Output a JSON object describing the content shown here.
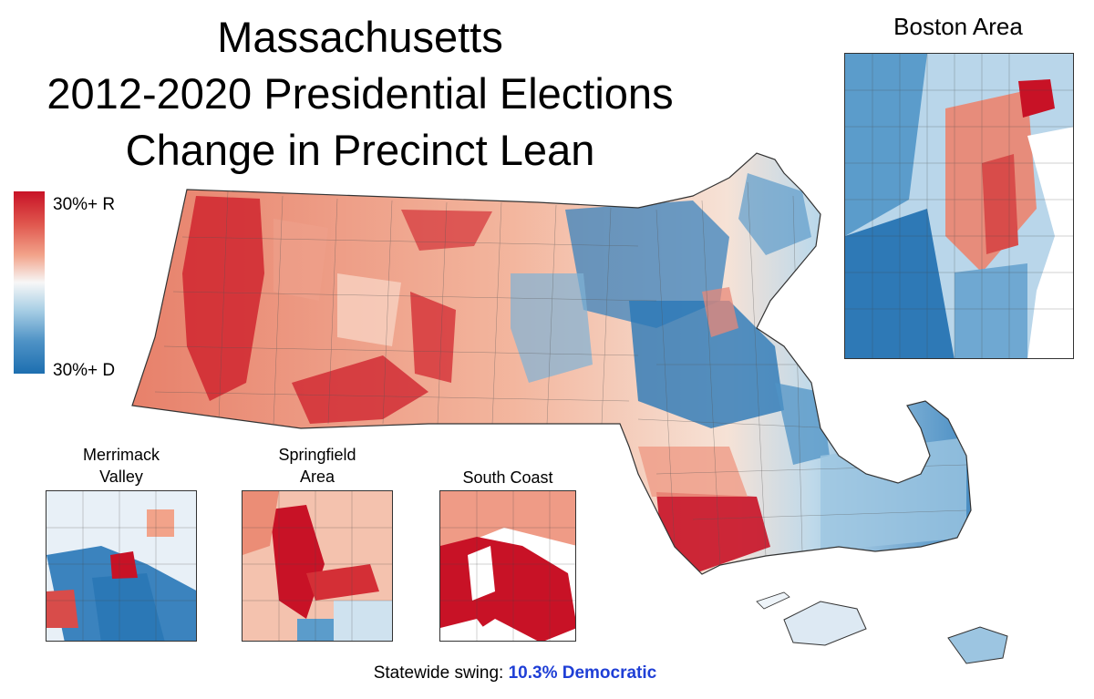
{
  "title": {
    "line1": "Massachusetts",
    "line2": "2012-2020 Presidential Elections",
    "line3": "Change in Precinct Lean"
  },
  "legend": {
    "top_label": "30%+ R",
    "bottom_label": "30%+ D",
    "colors": {
      "strong_r": "#c81226",
      "neutral": "#f7f7f7",
      "strong_d": "#1d6fb0"
    }
  },
  "insets": {
    "boston": {
      "label": "Boston Area"
    },
    "merrimack": {
      "label_line1": "Merrimack",
      "label_line2": "Valley"
    },
    "springfield": {
      "label_line1": "Springfield",
      "label_line2": "Area"
    },
    "south_coast": {
      "label": "South Coast"
    }
  },
  "footer": {
    "prefix": "Statewide swing: ",
    "value": "10.3% Democratic"
  }
}
